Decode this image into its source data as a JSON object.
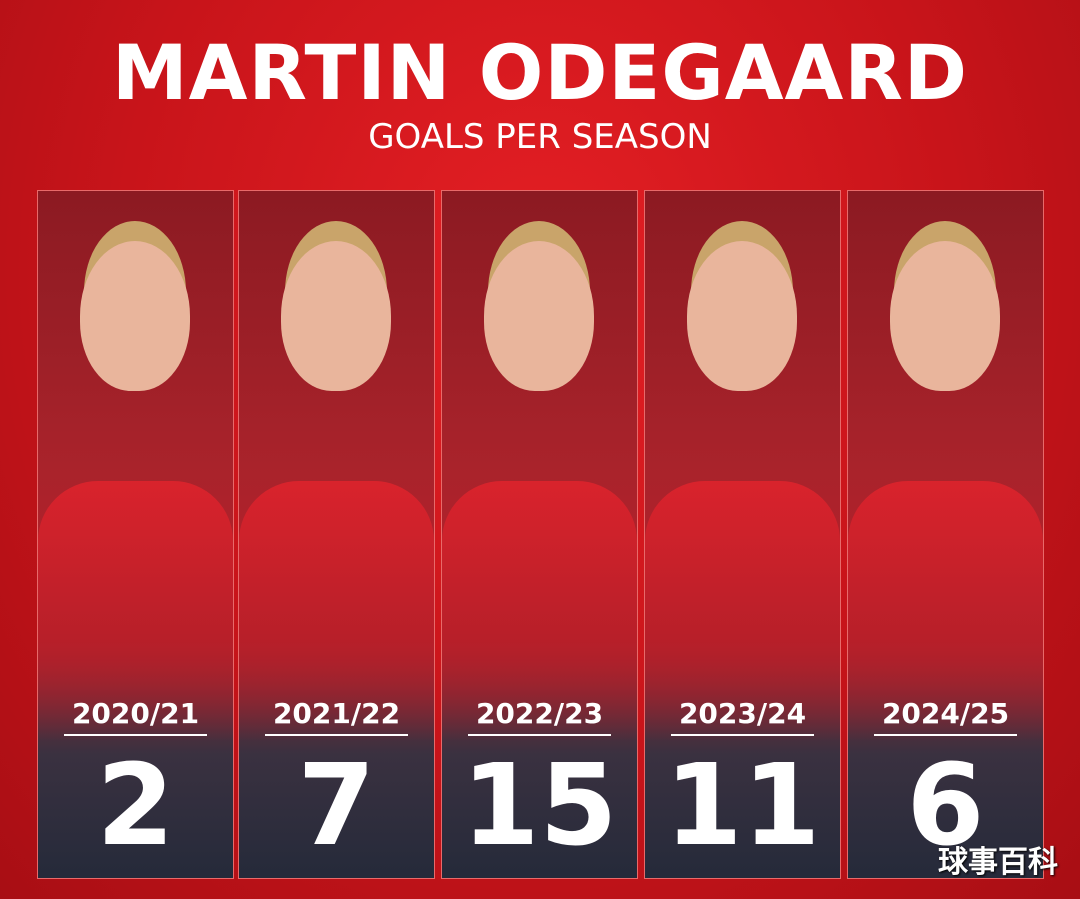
{
  "header": {
    "title": "MARTIN ODEGAARD",
    "subtitle": "GOALS PER SEASON"
  },
  "cards": [
    {
      "season": "2020/21",
      "goals": "2"
    },
    {
      "season": "2021/22",
      "goals": "7"
    },
    {
      "season": "2022/23",
      "goals": "15"
    },
    {
      "season": "2023/24",
      "goals": "11"
    },
    {
      "season": "2024/25",
      "goals": "6"
    }
  ],
  "watermark": "球事百科"
}
